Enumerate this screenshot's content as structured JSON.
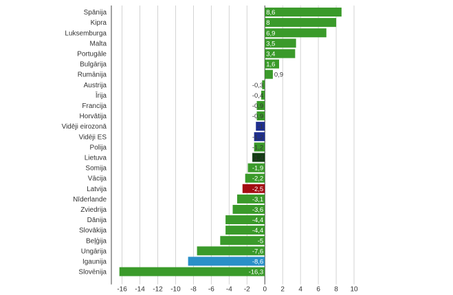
{
  "chart_data": {
    "type": "bar",
    "orientation": "horizontal",
    "title": "",
    "xlabel": "",
    "ylabel": "",
    "xlim": [
      -17.2,
      11
    ],
    "x_ticks": [
      -16,
      -14,
      -12,
      -10,
      -8,
      -6,
      -4,
      -2,
      0,
      2,
      4,
      6,
      8,
      10
    ],
    "grid": "vertical",
    "legend": "none",
    "categories": [
      "Spānija",
      "Kipra",
      "Luksemburga",
      "Malta",
      "Portugāle",
      "Bulgārija",
      "Rumānija",
      "Austrija",
      "Īrija",
      "Francija",
      "Horvātija",
      "Vidēji eirozonā",
      "Vidēji ES",
      "Polija",
      "Lietuva",
      "Somija",
      "Vācija",
      "Latvija",
      "Nīderlande",
      "Zviedrija",
      "Dānija",
      "Slovākija",
      "Beļģija",
      "Ungārija",
      "Igaunija",
      "Slovēnija"
    ],
    "values": [
      8.6,
      8,
      6.9,
      3.5,
      3.4,
      1.6,
      0.9,
      -0.3,
      -0.4,
      -0.9,
      -0.9,
      -1,
      -1.2,
      -1.2,
      -1.4,
      -1.9,
      -2.2,
      -2.5,
      -3.1,
      -3.6,
      -4.4,
      -4.4,
      -5,
      -7.6,
      -8.6,
      -16.3
    ],
    "value_labels": [
      "8,6",
      "8",
      "6,9",
      "3,5",
      "3,4",
      "1,6",
      "0,9",
      "-0,3",
      "-0,4",
      "-0,9",
      "-0,9",
      "-1",
      "-1,2",
      "-1,2",
      "-1,4",
      "-1,9",
      "-2,2",
      "-2,5",
      "-3,1",
      "-3,6",
      "-4,4",
      "-4,4",
      "-5",
      "-7,6",
      "-8,6",
      "-16,3"
    ],
    "tick_labels": [
      "-16",
      "-14",
      "-12",
      "-10",
      "-8",
      "-6",
      "-4",
      "-2",
      "0",
      "2",
      "4",
      "6",
      "8",
      "10"
    ],
    "colors": {
      "default": "#3a9a2a",
      "Vidēji eirozonā": "#1f2f8f",
      "Vidēji ES": "#1f2f8f",
      "Lietuva": "#123d12",
      "Latvija": "#a30c12",
      "Igaunija": "#2a90c8"
    },
    "grid_color": "#c8c8c8",
    "axis_color": "#444444"
  }
}
